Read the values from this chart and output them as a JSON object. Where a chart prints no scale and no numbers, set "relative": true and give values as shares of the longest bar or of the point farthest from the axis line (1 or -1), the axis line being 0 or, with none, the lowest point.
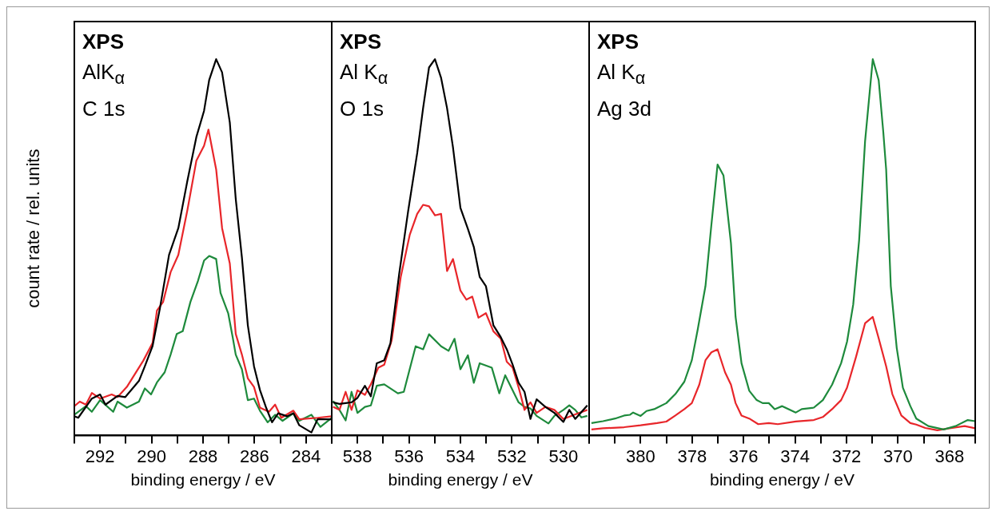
{
  "chart_data": [
    {
      "type": "line",
      "relative": true,
      "xlabel": "binding energy / eV",
      "ylabel": "count rate / rel. units",
      "annotations": [
        "XPS",
        "AlK$_{α}$",
        "C 1s"
      ],
      "xlim": [
        293,
        283
      ],
      "xticks": [
        {
          "value": 293,
          "label": null
        },
        292,
        {
          "value": 291,
          "label": null
        },
        290,
        {
          "value": 289,
          "label": null
        },
        288,
        {
          "value": 287,
          "label": null
        },
        286,
        {
          "value": 285,
          "label": null
        },
        284,
        {
          "value": 283,
          "label": null
        }
      ],
      "tick_labels": "x",
      "grid": false,
      "legend": false,
      "marker": "none",
      "line_style": "solid",
      "series": [
        {
          "color": "#000000",
          "x": [
            293.0,
            292.85,
            292.32,
            292.0,
            291.79,
            291.32,
            291.02,
            290.49,
            290.26,
            289.96,
            289.67,
            289.32,
            288.96,
            288.61,
            288.26,
            287.96,
            287.76,
            287.49,
            287.26,
            286.96,
            286.73,
            286.49,
            286.26,
            286.02,
            285.79,
            285.55,
            285.32,
            285.08,
            284.73,
            284.49,
            284.26,
            283.79,
            283.55,
            283.0
          ],
          "values": [
            0.051,
            0.047,
            0.098,
            0.109,
            0.082,
            0.105,
            0.102,
            0.145,
            0.184,
            0.238,
            0.34,
            0.48,
            0.551,
            0.676,
            0.793,
            0.863,
            0.945,
            1.0,
            0.965,
            0.832,
            0.629,
            0.473,
            0.293,
            0.184,
            0.121,
            0.074,
            0.035,
            0.059,
            0.051,
            0.059,
            0.027,
            0.008,
            0.043,
            0.043
          ]
        },
        {
          "color": "#e8262a",
          "x": [
            293.0,
            292.79,
            292.55,
            292.32,
            292.0,
            291.55,
            291.32,
            290.96,
            290.32,
            289.96,
            289.79,
            289.55,
            289.26,
            288.96,
            288.61,
            288.26,
            287.96,
            287.79,
            287.49,
            287.26,
            286.96,
            286.73,
            286.49,
            286.26,
            286.02,
            285.79,
            285.44,
            285.2,
            284.96,
            284.49,
            284.26,
            283.55,
            283.0
          ],
          "values": [
            0.078,
            0.09,
            0.082,
            0.113,
            0.098,
            0.109,
            0.102,
            0.129,
            0.199,
            0.246,
            0.332,
            0.355,
            0.434,
            0.48,
            0.598,
            0.73,
            0.77,
            0.813,
            0.707,
            0.551,
            0.457,
            0.27,
            0.215,
            0.152,
            0.129,
            0.074,
            0.063,
            0.082,
            0.047,
            0.066,
            0.043,
            0.047,
            0.051
          ]
        },
        {
          "color": "#1e8a3c",
          "x": [
            293.0,
            292.55,
            292.32,
            292.0,
            291.49,
            291.32,
            290.96,
            290.49,
            290.26,
            290.02,
            289.79,
            289.49,
            289.26,
            289.02,
            288.79,
            288.49,
            288.2,
            287.96,
            287.76,
            287.49,
            287.32,
            287.02,
            286.85,
            286.73,
            286.49,
            286.26,
            286.02,
            285.79,
            285.49,
            285.2,
            284.91,
            284.49,
            284.26,
            283.79,
            283.44,
            283.0
          ],
          "values": [
            0.055,
            0.078,
            0.063,
            0.094,
            0.063,
            0.09,
            0.074,
            0.09,
            0.125,
            0.109,
            0.141,
            0.168,
            0.215,
            0.27,
            0.277,
            0.355,
            0.41,
            0.465,
            0.477,
            0.469,
            0.379,
            0.324,
            0.262,
            0.215,
            0.176,
            0.094,
            0.098,
            0.066,
            0.035,
            0.055,
            0.039,
            0.059,
            0.039,
            0.055,
            0.023,
            0.047
          ]
        }
      ]
    },
    {
      "type": "line",
      "relative": true,
      "xlabel": "binding energy / eV",
      "annotations": [
        "XPS",
        "Al K$_{α}$",
        "O 1s"
      ],
      "xlim": [
        539,
        529
      ],
      "xticks": [
        {
          "value": 539,
          "label": null
        },
        538,
        {
          "value": 537,
          "label": null
        },
        536,
        {
          "value": 535,
          "label": null
        },
        534,
        {
          "value": 533,
          "label": null
        },
        532,
        {
          "value": 531,
          "label": null
        },
        530,
        {
          "value": 529,
          "label": null
        }
      ],
      "tick_labels": "x",
      "grid": false,
      "legend": false,
      "marker": "none",
      "line_style": "solid",
      "series": [
        {
          "color": "#000000",
          "x": [
            538.95,
            538.7,
            538.23,
            538.0,
            537.71,
            537.48,
            537.25,
            536.96,
            536.72,
            536.38,
            536.03,
            535.68,
            535.45,
            535.22,
            534.99,
            534.75,
            534.52,
            534.29,
            534.0,
            533.71,
            533.48,
            533.25,
            533.01,
            532.72,
            532.43,
            532.2,
            531.97,
            531.74,
            531.51,
            531.28,
            531.04,
            530.7,
            530.35,
            530.0,
            529.77,
            529.54,
            529.07
          ],
          "values": [
            0.088,
            0.084,
            0.088,
            0.1,
            0.132,
            0.104,
            0.192,
            0.2,
            0.245,
            0.429,
            0.597,
            0.75,
            0.87,
            0.978,
            1.0,
            0.95,
            0.87,
            0.766,
            0.605,
            0.549,
            0.501,
            0.421,
            0.397,
            0.293,
            0.261,
            0.229,
            0.188,
            0.14,
            0.116,
            0.044,
            0.096,
            0.076,
            0.06,
            0.036,
            0.068,
            0.044,
            0.08
          ]
        },
        {
          "color": "#e8262a",
          "x": [
            538.95,
            538.7,
            538.46,
            538.23,
            538.0,
            537.71,
            537.48,
            537.19,
            536.96,
            536.67,
            536.32,
            535.97,
            535.68,
            535.45,
            535.22,
            534.99,
            534.75,
            534.52,
            534.29,
            534.0,
            533.77,
            533.54,
            533.3,
            533.01,
            532.72,
            532.43,
            532.2,
            531.97,
            531.74,
            531.51,
            531.28,
            531.04,
            530.7,
            530.35,
            530.0,
            529.54,
            529.07
          ],
          "values": [
            0.076,
            0.068,
            0.116,
            0.068,
            0.12,
            0.108,
            0.136,
            0.18,
            0.188,
            0.253,
            0.421,
            0.533,
            0.589,
            0.613,
            0.609,
            0.585,
            0.589,
            0.437,
            0.469,
            0.385,
            0.361,
            0.369,
            0.313,
            0.325,
            0.277,
            0.257,
            0.196,
            0.18,
            0.128,
            0.068,
            0.088,
            0.06,
            0.076,
            0.068,
            0.044,
            0.056,
            0.068
          ]
        },
        {
          "color": "#1e8a3c",
          "x": [
            538.95,
            538.7,
            538.46,
            538.23,
            538.0,
            537.71,
            537.48,
            537.25,
            536.96,
            536.43,
            536.2,
            535.74,
            535.45,
            535.22,
            534.75,
            534.46,
            534.23,
            534.0,
            533.71,
            533.48,
            533.25,
            532.78,
            532.49,
            532.26,
            531.74,
            531.51,
            531.28,
            531.04,
            530.58,
            530.35,
            530.0,
            529.77,
            529.54,
            529.3,
            529.07
          ],
          "values": [
            0.092,
            0.068,
            0.04,
            0.116,
            0.06,
            0.076,
            0.08,
            0.132,
            0.136,
            0.112,
            0.116,
            0.237,
            0.229,
            0.269,
            0.237,
            0.225,
            0.257,
            0.176,
            0.213,
            0.14,
            0.192,
            0.18,
            0.112,
            0.16,
            0.088,
            0.076,
            0.072,
            0.052,
            0.032,
            0.052,
            0.068,
            0.08,
            0.068,
            0.048,
            0.052
          ]
        }
      ]
    },
    {
      "type": "line",
      "relative": true,
      "xlabel": "binding energy / eV",
      "annotations": [
        "XPS",
        "Al K$_{α}$",
        "Ag 3d"
      ],
      "xlim": [
        382,
        367
      ],
      "xticks": [
        {
          "value": 382,
          "label": null
        },
        {
          "value": 381,
          "label": null
        },
        380,
        {
          "value": 379,
          "label": null
        },
        378,
        {
          "value": 377,
          "label": null
        },
        376,
        {
          "value": 375,
          "label": null
        },
        374,
        {
          "value": 373,
          "label": null
        },
        372,
        {
          "value": 371,
          "label": null
        },
        370,
        {
          "value": 369,
          "label": null
        },
        368,
        {
          "value": 367,
          "label": null
        }
      ],
      "tick_labels": "x",
      "grid": false,
      "legend": false,
      "marker": "none",
      "line_style": "solid",
      "series": [
        {
          "color": "#1e8a3c",
          "x": [
            381.91,
            381.46,
            380.99,
            380.64,
            380.41,
            380.29,
            380.0,
            379.77,
            379.47,
            379.0,
            378.65,
            378.3,
            378.01,
            377.78,
            377.48,
            377.25,
            377.01,
            376.78,
            376.49,
            376.31,
            376.08,
            375.78,
            375.49,
            375.26,
            375.02,
            374.79,
            374.5,
            373.97,
            373.74,
            373.27,
            372.92,
            372.56,
            372.21,
            371.98,
            371.74,
            371.51,
            371.28,
            370.98,
            370.75,
            370.57,
            370.46,
            370.28,
            370.05,
            369.81,
            369.52,
            369.29,
            368.82,
            368.23,
            367.76,
            367.29,
            367.0
          ],
          "values": [
            0.033,
            0.038,
            0.045,
            0.053,
            0.055,
            0.061,
            0.052,
            0.065,
            0.07,
            0.086,
            0.11,
            0.143,
            0.2,
            0.282,
            0.397,
            0.56,
            0.72,
            0.691,
            0.511,
            0.315,
            0.192,
            0.119,
            0.094,
            0.086,
            0.086,
            0.07,
            0.078,
            0.061,
            0.07,
            0.074,
            0.094,
            0.135,
            0.192,
            0.249,
            0.348,
            0.519,
            0.781,
            1.0,
            0.944,
            0.805,
            0.707,
            0.397,
            0.233,
            0.127,
            0.078,
            0.045,
            0.025,
            0.016,
            0.025,
            0.041,
            0.038
          ]
        },
        {
          "color": "#e8262a",
          "x": [
            381.91,
            381.46,
            380.64,
            380.0,
            379.36,
            379.0,
            378.65,
            378.3,
            378.01,
            377.72,
            377.48,
            377.25,
            377.01,
            376.72,
            376.49,
            376.31,
            376.08,
            375.78,
            375.43,
            375.02,
            374.67,
            373.97,
            373.27,
            372.92,
            372.56,
            372.21,
            371.98,
            371.63,
            371.28,
            370.98,
            370.75,
            370.46,
            370.22,
            369.87,
            369.52,
            369.29,
            368.94,
            368.47,
            368.0,
            367.41,
            367.0
          ],
          "values": [
            0.016,
            0.019,
            0.022,
            0.027,
            0.033,
            0.037,
            0.053,
            0.07,
            0.086,
            0.135,
            0.2,
            0.221,
            0.229,
            0.168,
            0.135,
            0.086,
            0.053,
            0.045,
            0.03,
            0.033,
            0.03,
            0.037,
            0.041,
            0.049,
            0.07,
            0.094,
            0.127,
            0.209,
            0.298,
            0.315,
            0.258,
            0.184,
            0.11,
            0.053,
            0.033,
            0.029,
            0.02,
            0.014,
            0.019,
            0.025,
            0.019
          ]
        }
      ]
    }
  ]
}
